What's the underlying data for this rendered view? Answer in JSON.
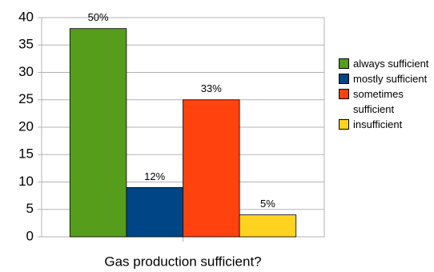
{
  "chart_data": {
    "type": "bar",
    "categories": [
      "Gas production sufficient?"
    ],
    "series": [
      {
        "name": "always sufficient",
        "color": "#579d1c",
        "values": [
          38
        ],
        "data_labels": [
          "50%"
        ]
      },
      {
        "name": "mostly sufficient",
        "color": "#004586",
        "values": [
          9
        ],
        "data_labels": [
          "12%"
        ]
      },
      {
        "name": "sometimes sufficient",
        "color": "#ff420e",
        "values": [
          25
        ],
        "data_labels": [
          "33%"
        ]
      },
      {
        "name": "insufficient",
        "color": "#ffd320",
        "values": [
          4
        ],
        "data_labels": [
          "5%"
        ]
      }
    ],
    "ylim": [
      0,
      40
    ],
    "yticks": [
      0,
      5,
      10,
      15,
      20,
      25,
      30,
      35,
      40
    ],
    "grid": true,
    "legend": "right"
  }
}
